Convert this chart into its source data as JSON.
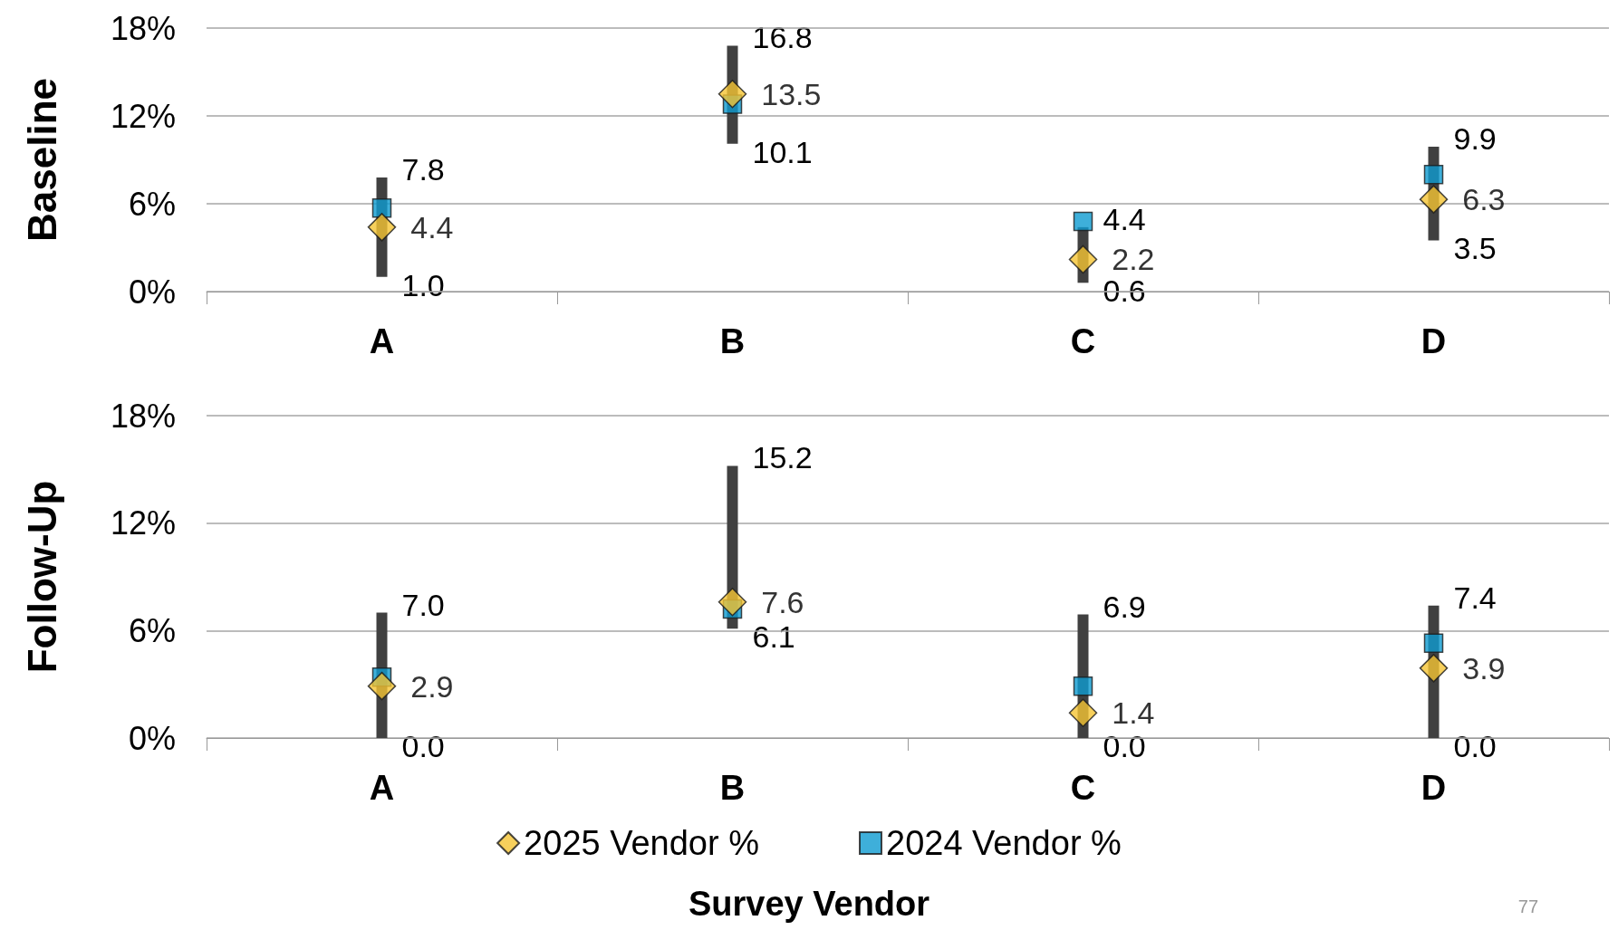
{
  "chart_data": [
    {
      "type": "scatter",
      "ylabel": "Baseline",
      "categories": [
        "A",
        "B",
        "C",
        "D"
      ],
      "ylim": [
        0,
        18
      ],
      "yticks": [
        {
          "value": 0,
          "label": "0%"
        },
        {
          "value": 6,
          "label": "6%"
        },
        {
          "value": 12,
          "label": "12%"
        },
        {
          "value": 18,
          "label": "18%"
        }
      ],
      "grid": "y",
      "annotations": [
        {
          "text": "7.8",
          "x": "A",
          "y": 7.8
        },
        {
          "text": "1.0",
          "x": "A",
          "y": 1.0
        },
        {
          "text": "16.8",
          "x": "B",
          "y": 16.8
        },
        {
          "text": "10.1",
          "x": "B",
          "y": 10.1
        },
        {
          "text": "4.4",
          "x": "C",
          "y": 4.4
        },
        {
          "text": "0.6",
          "x": "C",
          "y": 0.6
        },
        {
          "text": "9.9",
          "x": "D",
          "y": 9.9
        },
        {
          "text": "3.5",
          "x": "D",
          "y": 3.5
        }
      ],
      "series": [
        {
          "type": "bar",
          "color": "#404040",
          "base": [
            1.0,
            10.1,
            0.6,
            3.5
          ],
          "values": [
            6.8,
            6.7,
            3.8,
            6.4
          ]
        },
        {
          "color": "#f5c433",
          "marker": "diamond",
          "values": [
            4.4,
            13.5,
            2.2,
            6.3
          ],
          "value_labels": [
            "4.4",
            "13.5",
            "2.2",
            "6.3"
          ]
        },
        {
          "color": "#0e9bd1",
          "marker": "square",
          "values": [
            5.7,
            12.8,
            4.8,
            8.0
          ]
        }
      ]
    },
    {
      "type": "scatter",
      "ylabel": "Follow-Up",
      "xlabel": "Survey Vendor",
      "categories": [
        "A",
        "B",
        "C",
        "D"
      ],
      "ylim": [
        0,
        18
      ],
      "yticks": [
        {
          "value": 0,
          "label": "0%"
        },
        {
          "value": 6,
          "label": "6%"
        },
        {
          "value": 12,
          "label": "12%"
        },
        {
          "value": 18,
          "label": "18%"
        }
      ],
      "grid": "y",
      "legend": "bottom",
      "annotations": [
        {
          "text": "7.0",
          "x": "A",
          "y": 7.0
        },
        {
          "text": "0.0",
          "x": "A",
          "y": 0.0
        },
        {
          "text": "15.2",
          "x": "B",
          "y": 15.2
        },
        {
          "text": "6.1",
          "x": "B",
          "y": 6.1
        },
        {
          "text": "6.9",
          "x": "C",
          "y": 6.9
        },
        {
          "text": "0.0",
          "x": "C",
          "y": 0.0
        },
        {
          "text": "7.4",
          "x": "D",
          "y": 7.4
        },
        {
          "text": "0.0",
          "x": "D",
          "y": 0.0
        },
        "77"
      ],
      "series": [
        {
          "type": "bar",
          "color": "#404040",
          "base": [
            0.0,
            6.1,
            0.0,
            0.0
          ],
          "values": [
            7.0,
            9.1,
            6.9,
            7.4
          ]
        },
        {
          "name": "2025 Vendor %",
          "color": "#f5c433",
          "marker": "diamond",
          "values": [
            2.9,
            7.6,
            1.4,
            3.9
          ],
          "value_labels": [
            "2.9",
            "7.6",
            "1.4",
            "3.9"
          ]
        },
        {
          "name": "2024 Vendor %",
          "color": "#0e9bd1",
          "marker": "square",
          "values": [
            3.4,
            7.2,
            2.9,
            5.3
          ]
        }
      ]
    }
  ]
}
